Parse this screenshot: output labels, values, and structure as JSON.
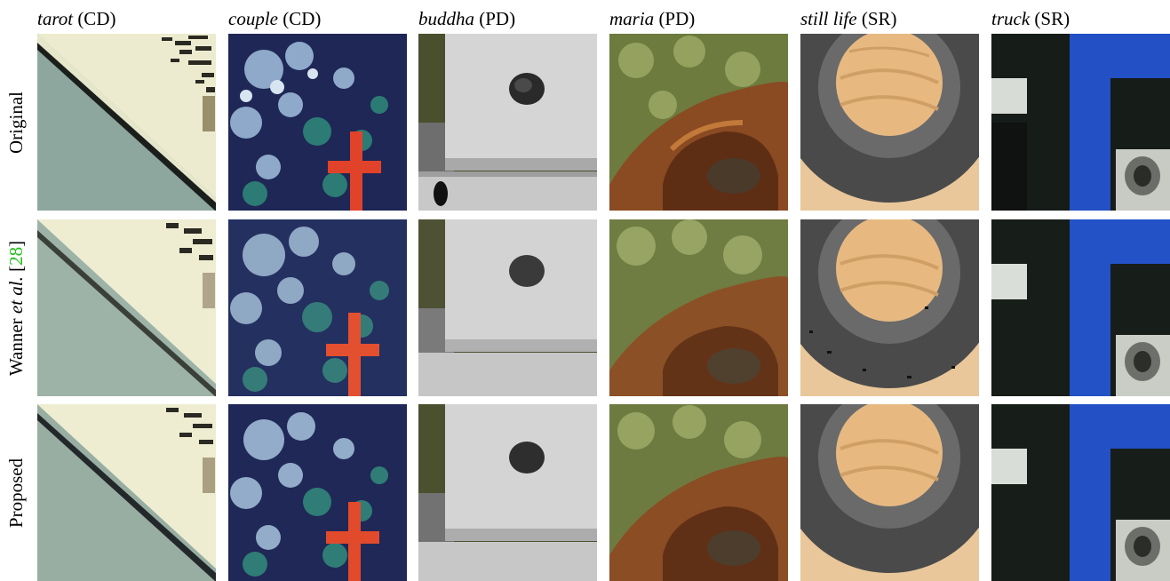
{
  "columns": [
    {
      "name": "tarot",
      "tag": "(CD)"
    },
    {
      "name": "couple",
      "tag": "(CD)"
    },
    {
      "name": "buddha",
      "tag": "(PD)"
    },
    {
      "name": "maria",
      "tag": "(PD)"
    },
    {
      "name": "still life",
      "tag": "(SR)"
    },
    {
      "name": "truck",
      "tag": "(SR)"
    }
  ],
  "rows": {
    "original": {
      "label": "Original"
    },
    "wanner": {
      "label_pre": "Wanner ",
      "label_em": "et al.",
      "label_ref_open": " [",
      "label_ref": "28",
      "label_ref_close": "]"
    },
    "proposed": {
      "label": "Proposed"
    }
  }
}
